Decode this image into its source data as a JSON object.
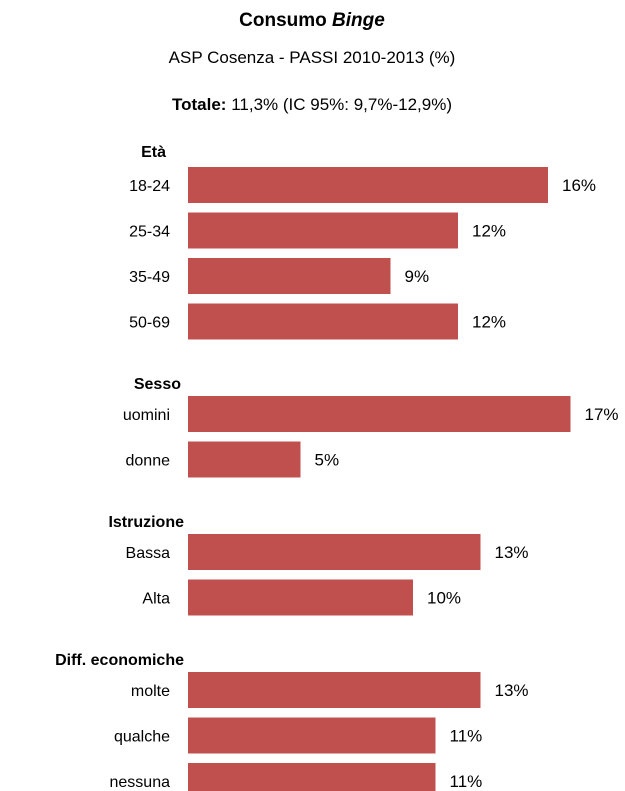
{
  "chart_data": {
    "type": "bar",
    "orientation": "horizontal",
    "title_prefix": "Consumo ",
    "title_emphasis": "Binge",
    "subtitle": "ASP Cosenza - PASSI 2010-2013 (%)",
    "total_label": "Totale:",
    "total_text": " 11,3% (IC 95%: 9,7%-12,9%)",
    "bar_color": "#c0504d",
    "value_suffix": "%",
    "groups": [
      {
        "name": "Età",
        "categories": [
          "18-24",
          "25-34",
          "35-49",
          "50-69"
        ],
        "values": [
          16,
          12,
          9,
          12
        ]
      },
      {
        "name": "Sesso",
        "categories": [
          "uomini",
          "donne"
        ],
        "values": [
          17,
          5
        ]
      },
      {
        "name": "Istruzione",
        "categories": [
          "Bassa",
          "Alta"
        ],
        "values": [
          13,
          10
        ]
      },
      {
        "name": "Diff. economiche",
        "categories": [
          "molte",
          "qualche",
          "nessuna"
        ],
        "values": [
          13,
          11,
          11
        ]
      }
    ]
  }
}
